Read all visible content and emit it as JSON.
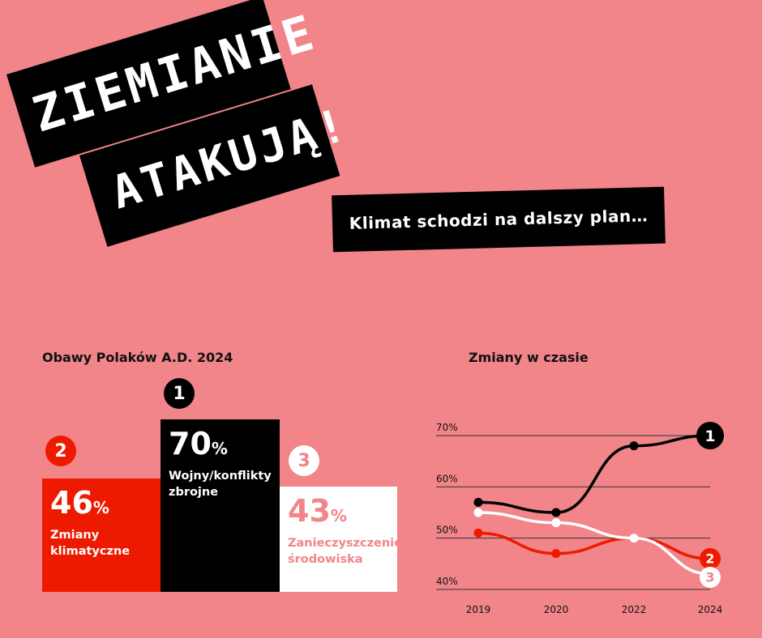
{
  "header": {
    "title_line1": "ZIEMIANIE",
    "title_line2": "ATAKUJĄ!",
    "subtitle": "Klimat schodzi na dalszy plan…"
  },
  "bar_section": {
    "title": "Obawy Polaków A.D. 2024"
  },
  "line_section": {
    "title": "Zmiany w czasie"
  },
  "colors": {
    "background": "#f1858a",
    "black": "#000000",
    "red": "#ee1a00",
    "white": "#ffffff"
  },
  "chart_data": [
    {
      "type": "bar",
      "title": "Obawy Polaków A.D. 2024",
      "categories": [
        "Zmiany klimatyczne",
        "Wojny/konflikty zbrojne",
        "Zanieczyszczenie środowiska"
      ],
      "bars": [
        {
          "rank": "2",
          "value": 46,
          "value_text": "46",
          "unit": "%",
          "label_lines": [
            "Zmiany",
            "klimatyczne"
          ],
          "color": "#ee1a00"
        },
        {
          "rank": "1",
          "value": 70,
          "value_text": "70",
          "unit": "%",
          "label_lines": [
            "Wojny/konflikty",
            "zbrojne"
          ],
          "color": "#000000"
        },
        {
          "rank": "3",
          "value": 43,
          "value_text": "43",
          "unit": "%",
          "label_lines": [
            "Zanieczyszczenie",
            "środowiska"
          ],
          "color": "#ffffff"
        }
      ]
    },
    {
      "type": "line",
      "title": "Zmiany w czasie",
      "x": [
        "2019",
        "2020",
        "2022",
        "2024"
      ],
      "y_ticks": [
        "70%",
        "60%",
        "50%",
        "40%"
      ],
      "y_tick_values": [
        70,
        60,
        50,
        40
      ],
      "ylim": [
        40,
        70
      ],
      "grid": true,
      "series": [
        {
          "rank": "1",
          "color": "#000000",
          "values": [
            57,
            55,
            68,
            70
          ]
        },
        {
          "rank": "2",
          "color": "#ee1a00",
          "values": [
            51,
            47,
            50,
            46
          ]
        },
        {
          "rank": "3",
          "color": "#ffffff",
          "values": [
            55,
            53,
            50,
            43
          ]
        }
      ]
    }
  ]
}
